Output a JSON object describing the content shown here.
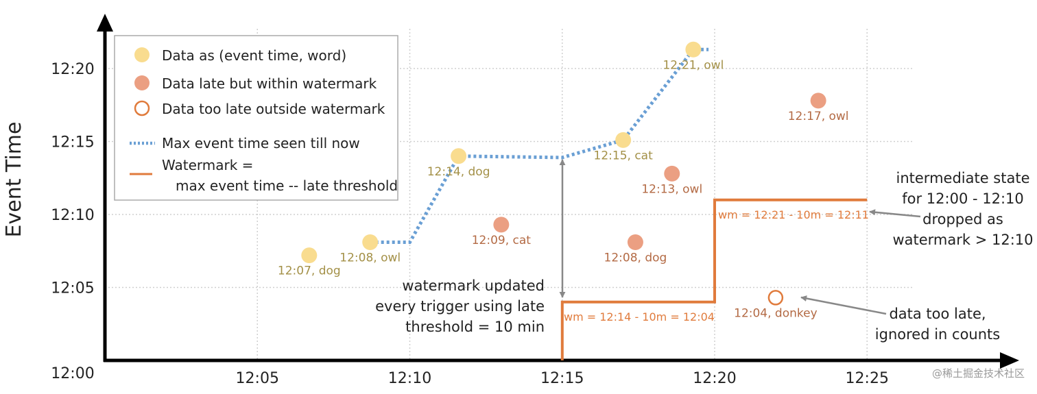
{
  "chart_data": {
    "type": "scatter",
    "y_axis_label": "Event Time",
    "x_ticks": [
      "12:05",
      "12:10",
      "12:15",
      "12:20",
      "12:25"
    ],
    "y_ticks": [
      "12:00",
      "12:05",
      "12:10",
      "12:15",
      "12:20"
    ],
    "x_range": [
      "12:00",
      "12:26"
    ],
    "y_range": [
      "12:00",
      "12:22"
    ],
    "grid": true,
    "legend_position": "top-left",
    "legend": {
      "on_time": "Data as (event time, word)",
      "late_within": "Data late but within watermark",
      "too_late": "Data too late outside watermark",
      "max_line": "Max event time seen till now",
      "watermark_line1": "Watermark =",
      "watermark_line2": "max event time -- late threshold"
    },
    "points": [
      {
        "label": "12:07, dog",
        "category": "on_time",
        "x": "12:06.7",
        "y": "12:07.2"
      },
      {
        "label": "12:08, owl",
        "category": "on_time",
        "x": "12:08.7",
        "y": "12:08.1"
      },
      {
        "label": "12:14, dog",
        "category": "on_time",
        "x": "12:11.6",
        "y": "12:14.0"
      },
      {
        "label": "12:15, cat",
        "category": "on_time",
        "x": "12:17.0",
        "y": "12:15.1"
      },
      {
        "label": "12:21, owl",
        "category": "on_time",
        "x": "12:19.3",
        "y": "12:21.3"
      },
      {
        "label": "12:09, cat",
        "category": "late_within",
        "x": "12:13.0",
        "y": "12:09.3"
      },
      {
        "label": "12:08, dog",
        "category": "late_within",
        "x": "12:17.4",
        "y": "12:08.1"
      },
      {
        "label": "12:13, owl",
        "category": "late_within",
        "x": "12:18.6",
        "y": "12:12.8"
      },
      {
        "label": "12:17, owl",
        "category": "late_within",
        "x": "12:23.4",
        "y": "12:17.8"
      },
      {
        "label": "12:04, donkey",
        "category": "too_late",
        "x": "12:22.0",
        "y": "12:04.3"
      }
    ],
    "max_event_time_line": [
      {
        "x": "12:08.7",
        "y": "12:08.1"
      },
      {
        "x": "12:10.0",
        "y": "12:08.1"
      },
      {
        "x": "12:11.6",
        "y": "12:14.0"
      },
      {
        "x": "12:15.0",
        "y": "12:13.9"
      },
      {
        "x": "12:17.0",
        "y": "12:15.1"
      },
      {
        "x": "12:19.3",
        "y": "12:21.3"
      },
      {
        "x": "12:19.8",
        "y": "12:21.3"
      }
    ],
    "watermark_line": [
      {
        "x": "12:15",
        "y": "12:00"
      },
      {
        "x": "12:15",
        "y": "12:04"
      },
      {
        "x": "12:20",
        "y": "12:04"
      },
      {
        "x": "12:20",
        "y": "12:11"
      },
      {
        "x": "12:25",
        "y": "12:11"
      }
    ],
    "watermark_labels": [
      {
        "text": "wm = 12:14 - 10m = 12:04"
      },
      {
        "text": "wm = 12:21 - 10m = 12:11"
      }
    ],
    "annotations": {
      "trigger": [
        "watermark updated",
        "every trigger using late",
        "threshold = 10 min"
      ],
      "dropped": [
        "intermediate state",
        "for 12:00 - 12:10",
        "dropped as",
        "watermark > 12:10"
      ],
      "too_late": [
        "data too late,",
        "ignored in counts"
      ]
    },
    "colors": {
      "on_time_fill": "#f9dc8f",
      "late_fill": "#eb9f82",
      "too_late_stroke": "#e07b3c",
      "max_line": "#6a9fd4",
      "watermark_line": "#e07b3c"
    }
  },
  "watermark_text": "@稀土掘金技术社区"
}
